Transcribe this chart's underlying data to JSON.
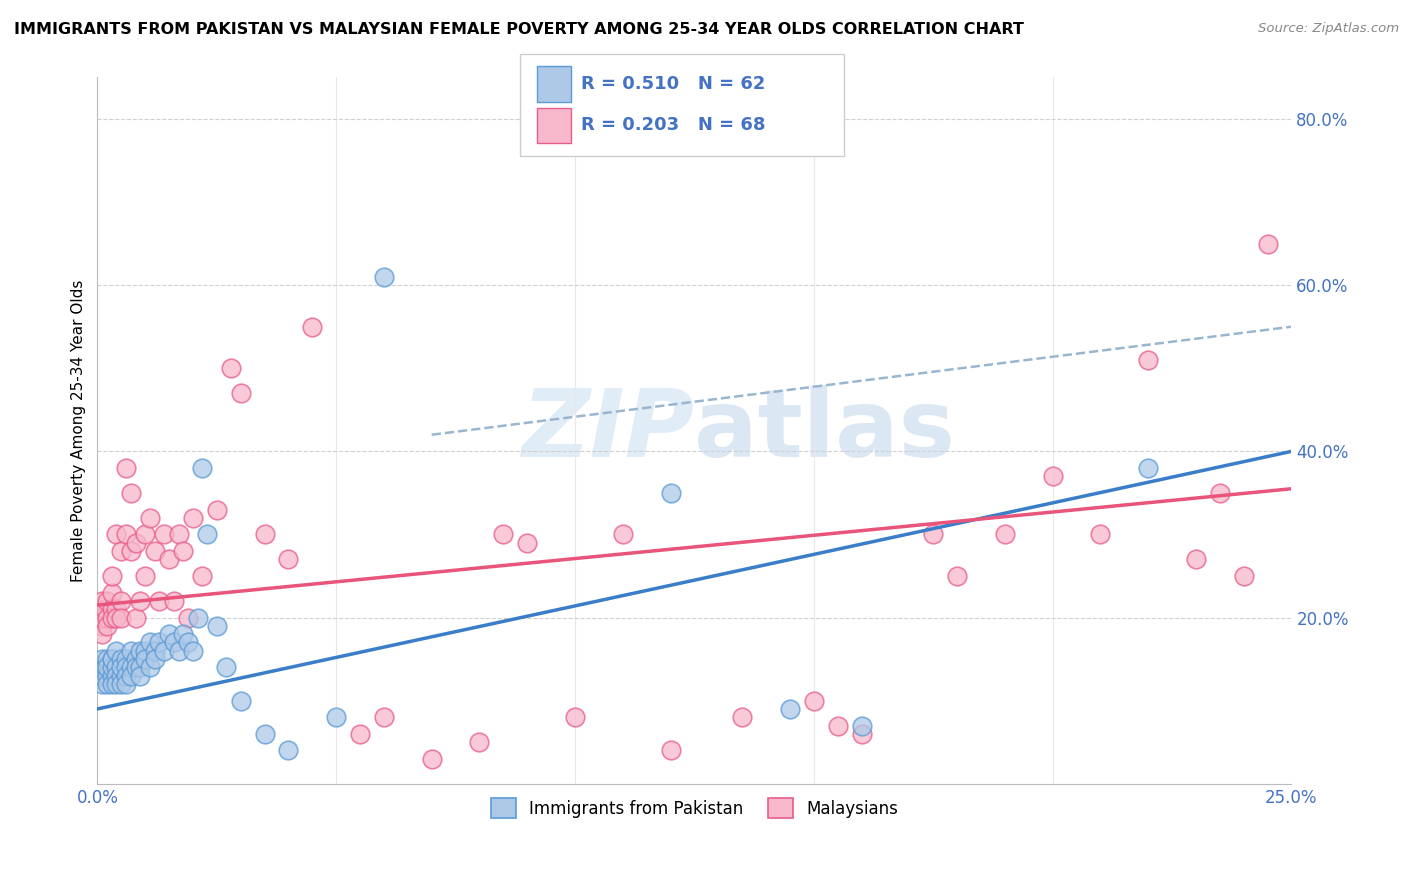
{
  "title": "IMMIGRANTS FROM PAKISTAN VS MALAYSIAN FEMALE POVERTY AMONG 25-34 YEAR OLDS CORRELATION CHART",
  "source": "Source: ZipAtlas.com",
  "ylabel": "Female Poverty Among 25-34 Year Olds",
  "watermark_zip": "ZIP",
  "watermark_atlas": "atlas",
  "legend_r1": "R = 0.510",
  "legend_n1": "N = 62",
  "legend_r2": "R = 0.203",
  "legend_n2": "N = 68",
  "color_blue_fill": "#aec9e8",
  "color_blue_edge": "#5b9bd5",
  "color_pink_fill": "#f7b8cc",
  "color_pink_edge": "#e95c8a",
  "color_blue_line": "#3a7dc9",
  "color_pink_line": "#e8547a",
  "color_dash_line": "#9ab5d0",
  "color_grid": "#d0d0d0",
  "color_axis_text": "#4472c4",
  "xlim": [
    0.0,
    0.25
  ],
  "ylim": [
    0.0,
    0.85
  ],
  "x_tick_left": "0.0%",
  "x_tick_right": "25.0%",
  "right_y_ticks": [
    0.8,
    0.6,
    0.4,
    0.2
  ],
  "right_y_labels": [
    "80.0%",
    "60.0%",
    "40.0%",
    "20.0%"
  ],
  "blue_line_x0": 0.0,
  "blue_line_y0": 0.09,
  "blue_line_x1": 0.25,
  "blue_line_y1": 0.4,
  "pink_line_x0": 0.0,
  "pink_line_y0": 0.215,
  "pink_line_x1": 0.25,
  "pink_line_y1": 0.355,
  "dash_line_x0": 0.07,
  "dash_line_y0": 0.42,
  "dash_line_x1": 0.25,
  "dash_line_y1": 0.55,
  "blue_x": [
    0.0005,
    0.001,
    0.001,
    0.001,
    0.0015,
    0.002,
    0.002,
    0.002,
    0.002,
    0.003,
    0.003,
    0.003,
    0.003,
    0.003,
    0.004,
    0.004,
    0.004,
    0.004,
    0.005,
    0.005,
    0.005,
    0.005,
    0.006,
    0.006,
    0.006,
    0.006,
    0.007,
    0.007,
    0.007,
    0.008,
    0.008,
    0.009,
    0.009,
    0.009,
    0.01,
    0.01,
    0.011,
    0.011,
    0.012,
    0.012,
    0.013,
    0.014,
    0.015,
    0.016,
    0.017,
    0.018,
    0.019,
    0.02,
    0.021,
    0.022,
    0.023,
    0.025,
    0.027,
    0.03,
    0.035,
    0.04,
    0.05,
    0.06,
    0.12,
    0.145,
    0.16,
    0.22
  ],
  "blue_y": [
    0.14,
    0.15,
    0.12,
    0.13,
    0.14,
    0.15,
    0.13,
    0.12,
    0.14,
    0.15,
    0.13,
    0.12,
    0.14,
    0.15,
    0.14,
    0.16,
    0.13,
    0.12,
    0.15,
    0.13,
    0.14,
    0.12,
    0.15,
    0.14,
    0.13,
    0.12,
    0.16,
    0.14,
    0.13,
    0.15,
    0.14,
    0.16,
    0.14,
    0.13,
    0.16,
    0.15,
    0.17,
    0.14,
    0.16,
    0.15,
    0.17,
    0.16,
    0.18,
    0.17,
    0.16,
    0.18,
    0.17,
    0.16,
    0.2,
    0.38,
    0.3,
    0.19,
    0.14,
    0.1,
    0.06,
    0.04,
    0.08,
    0.61,
    0.35,
    0.09,
    0.07,
    0.38
  ],
  "pink_x": [
    0.0005,
    0.001,
    0.001,
    0.001,
    0.001,
    0.0015,
    0.002,
    0.002,
    0.002,
    0.003,
    0.003,
    0.003,
    0.003,
    0.004,
    0.004,
    0.004,
    0.005,
    0.005,
    0.005,
    0.006,
    0.006,
    0.007,
    0.007,
    0.008,
    0.008,
    0.009,
    0.01,
    0.01,
    0.011,
    0.012,
    0.013,
    0.014,
    0.015,
    0.016,
    0.017,
    0.018,
    0.019,
    0.02,
    0.022,
    0.025,
    0.028,
    0.03,
    0.035,
    0.04,
    0.045,
    0.055,
    0.06,
    0.07,
    0.08,
    0.085,
    0.09,
    0.1,
    0.11,
    0.12,
    0.135,
    0.15,
    0.155,
    0.16,
    0.175,
    0.18,
    0.19,
    0.2,
    0.21,
    0.22,
    0.23,
    0.235,
    0.24,
    0.245
  ],
  "pink_y": [
    0.2,
    0.22,
    0.19,
    0.18,
    0.2,
    0.21,
    0.22,
    0.2,
    0.19,
    0.21,
    0.2,
    0.23,
    0.25,
    0.21,
    0.3,
    0.2,
    0.22,
    0.28,
    0.2,
    0.3,
    0.38,
    0.28,
    0.35,
    0.29,
    0.2,
    0.22,
    0.3,
    0.25,
    0.32,
    0.28,
    0.22,
    0.3,
    0.27,
    0.22,
    0.3,
    0.28,
    0.2,
    0.32,
    0.25,
    0.33,
    0.5,
    0.47,
    0.3,
    0.27,
    0.55,
    0.06,
    0.08,
    0.03,
    0.05,
    0.3,
    0.29,
    0.08,
    0.3,
    0.04,
    0.08,
    0.1,
    0.07,
    0.06,
    0.3,
    0.25,
    0.3,
    0.37,
    0.3,
    0.51,
    0.27,
    0.35,
    0.25,
    0.65
  ]
}
